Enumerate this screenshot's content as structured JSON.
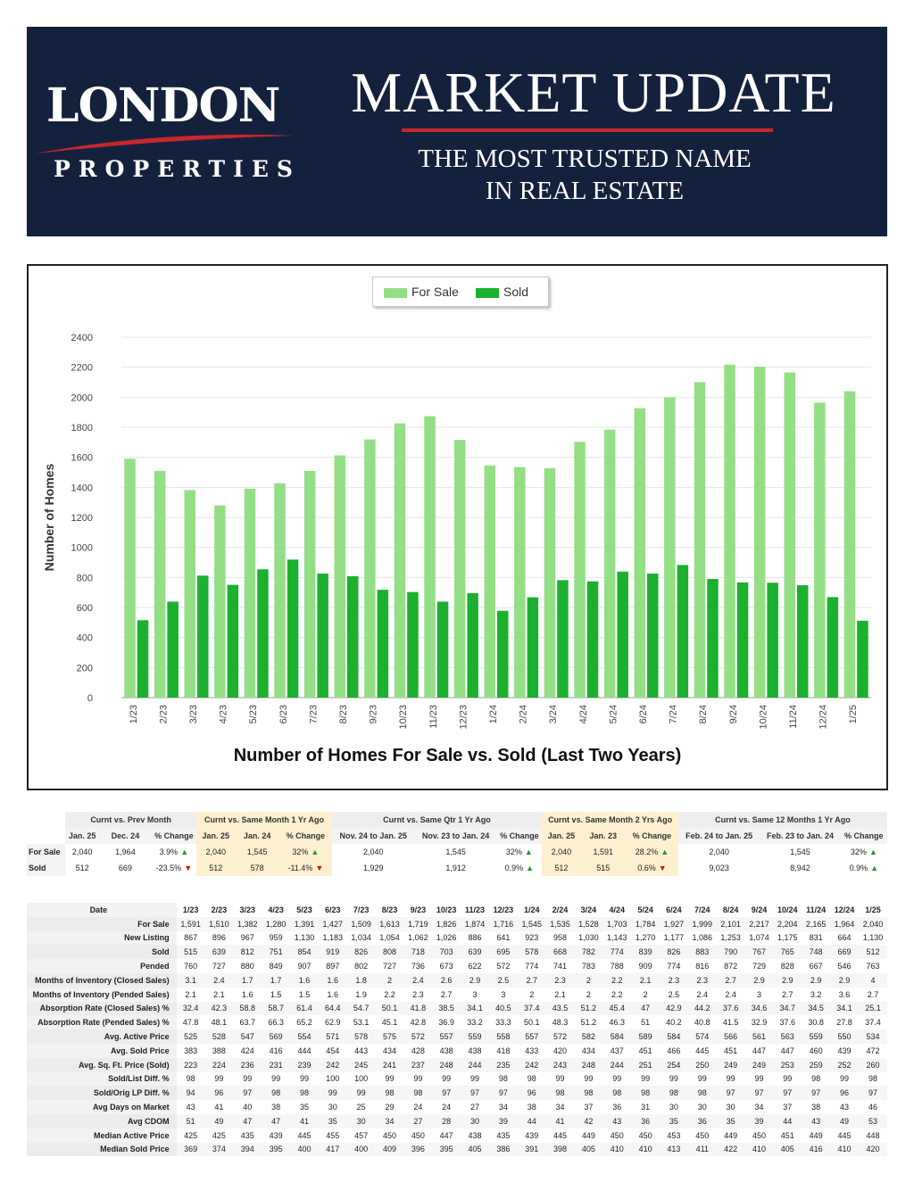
{
  "header": {
    "logo_main": "LONDON",
    "logo_sub": "PROPERTIES",
    "title": "MARKET UPDATE",
    "tagline_line1": "THE MOST TRUSTED NAME",
    "tagline_line2": "IN REAL ESTATE"
  },
  "colors": {
    "banner": "#14213d",
    "accent_red": "#c8262e",
    "for_sale": "#94df86",
    "sold": "#1bb02e"
  },
  "chart_data": {
    "type": "bar",
    "title": "Number of Homes For Sale vs. Sold (Last Two Years)",
    "ylabel": "Number of Homes",
    "xlabel": "",
    "ylim": [
      0,
      2400
    ],
    "yticks": [
      0,
      200,
      400,
      600,
      800,
      1000,
      1200,
      1400,
      1600,
      1800,
      2000,
      2200,
      2400
    ],
    "legend_position": "top-center",
    "grid": true,
    "categories": [
      "1/23",
      "2/23",
      "3/23",
      "4/23",
      "5/23",
      "6/23",
      "7/23",
      "8/23",
      "9/23",
      "10/23",
      "11/23",
      "12/23",
      "1/24",
      "2/24",
      "3/24",
      "4/24",
      "5/24",
      "6/24",
      "7/24",
      "8/24",
      "9/24",
      "10/24",
      "11/24",
      "12/24",
      "1/25"
    ],
    "series": [
      {
        "name": "For Sale",
        "color": "#94df86",
        "values": [
          1591,
          1510,
          1382,
          1280,
          1391,
          1427,
          1509,
          1613,
          1719,
          1826,
          1874,
          1716,
          1545,
          1535,
          1528,
          1703,
          1784,
          1927,
          1999,
          2101,
          2217,
          2204,
          2165,
          1964,
          2040
        ]
      },
      {
        "name": "Sold",
        "color": "#1bb02e",
        "values": [
          515,
          639,
          812,
          751,
          854,
          919,
          826,
          808,
          718,
          703,
          639,
          695,
          578,
          668,
          782,
          774,
          839,
          826,
          883,
          790,
          767,
          765,
          748,
          669,
          512
        ]
      }
    ]
  },
  "comparison": {
    "groups": [
      {
        "title": "Curnt vs. Prev Month",
        "highlight": false,
        "cols": [
          "Jan. 25",
          "Dec. 24",
          "% Change"
        ],
        "for_sale": [
          "2,040",
          "1,964",
          "3.9%"
        ],
        "for_sale_dir": "up",
        "sold": [
          "512",
          "669",
          "-23.5%"
        ],
        "sold_dir": "down"
      },
      {
        "title": "Curnt vs. Same Month 1 Yr Ago",
        "highlight": true,
        "cols": [
          "Jan. 25",
          "Jan. 24",
          "% Change"
        ],
        "for_sale": [
          "2,040",
          "1,545",
          "32%"
        ],
        "for_sale_dir": "up",
        "sold": [
          "512",
          "578",
          "-11.4%"
        ],
        "sold_dir": "down"
      },
      {
        "title": "Curnt vs. Same Qtr 1 Yr Ago",
        "highlight": false,
        "cols": [
          "Nov. 24 to Jan. 25",
          "Nov. 23 to Jan. 24",
          "% Change"
        ],
        "for_sale": [
          "2,040",
          "1,545",
          "32%"
        ],
        "for_sale_dir": "up",
        "sold": [
          "1,929",
          "1,912",
          "0.9%"
        ],
        "sold_dir": "up"
      },
      {
        "title": "Curnt vs. Same Month 2 Yrs Ago",
        "highlight": true,
        "cols": [
          "Jan. 25",
          "Jan. 23",
          "% Change"
        ],
        "for_sale": [
          "2,040",
          "1,591",
          "28.2%"
        ],
        "for_sale_dir": "up",
        "sold": [
          "512",
          "515",
          "0.6%"
        ],
        "sold_dir": "down"
      },
      {
        "title": "Curnt vs. Same 12 Months 1 Yr Ago",
        "highlight": false,
        "cols": [
          "Feb. 24 to Jan. 25",
          "Feb. 23 to Jan. 24",
          "% Change"
        ],
        "for_sale": [
          "2,040",
          "1,545",
          "32%"
        ],
        "for_sale_dir": "up",
        "sold": [
          "9,023",
          "8,942",
          "0.9%"
        ],
        "sold_dir": "up"
      }
    ],
    "row_labels": [
      "For Sale",
      "Sold"
    ]
  },
  "stats": {
    "header_label": "Date",
    "months": [
      "1/23",
      "2/23",
      "3/23",
      "4/23",
      "5/23",
      "6/23",
      "7/23",
      "8/23",
      "9/23",
      "10/23",
      "11/23",
      "12/23",
      "1/24",
      "2/24",
      "3/24",
      "4/24",
      "5/24",
      "6/24",
      "7/24",
      "8/24",
      "9/24",
      "10/24",
      "11/24",
      "12/24",
      "1/25"
    ],
    "rows": [
      {
        "label": "For Sale",
        "values": [
          "1,591",
          "1,510",
          "1,382",
          "1,280",
          "1,391",
          "1,427",
          "1,509",
          "1,613",
          "1,719",
          "1,826",
          "1,874",
          "1,716",
          "1,545",
          "1,535",
          "1,528",
          "1,703",
          "1,784",
          "1,927",
          "1,999",
          "2,101",
          "2,217",
          "2,204",
          "2,165",
          "1,964",
          "2,040"
        ]
      },
      {
        "label": "New Listing",
        "values": [
          "867",
          "896",
          "967",
          "959",
          "1,130",
          "1,183",
          "1,034",
          "1,054",
          "1,062",
          "1,026",
          "886",
          "641",
          "923",
          "958",
          "1,030",
          "1,143",
          "1,270",
          "1,177",
          "1,086",
          "1,253",
          "1,074",
          "1,175",
          "831",
          "664",
          "1,130"
        ]
      },
      {
        "label": "Sold",
        "values": [
          "515",
          "639",
          "812",
          "751",
          "854",
          "919",
          "826",
          "808",
          "718",
          "703",
          "639",
          "695",
          "578",
          "668",
          "782",
          "774",
          "839",
          "826",
          "883",
          "790",
          "767",
          "765",
          "748",
          "669",
          "512"
        ]
      },
      {
        "label": "Pended",
        "values": [
          "760",
          "727",
          "880",
          "849",
          "907",
          "897",
          "802",
          "727",
          "736",
          "673",
          "622",
          "572",
          "774",
          "741",
          "783",
          "788",
          "909",
          "774",
          "816",
          "872",
          "729",
          "828",
          "667",
          "546",
          "763"
        ]
      },
      {
        "label": "Months of Inventory (Closed Sales)",
        "values": [
          "3.1",
          "2.4",
          "1.7",
          "1.7",
          "1.6",
          "1.6",
          "1.8",
          "2",
          "2.4",
          "2.6",
          "2.9",
          "2.5",
          "2.7",
          "2.3",
          "2",
          "2.2",
          "2.1",
          "2.3",
          "2.3",
          "2.7",
          "2.9",
          "2.9",
          "2.9",
          "2.9",
          "4"
        ]
      },
      {
        "label": "Months of Inventory (Pended Sales)",
        "values": [
          "2.1",
          "2.1",
          "1.6",
          "1.5",
          "1.5",
          "1.6",
          "1.9",
          "2.2",
          "2.3",
          "2.7",
          "3",
          "3",
          "2",
          "2.1",
          "2",
          "2.2",
          "2",
          "2.5",
          "2.4",
          "2.4",
          "3",
          "2.7",
          "3.2",
          "3.6",
          "2.7"
        ]
      },
      {
        "label": "Absorption Rate (Closed Sales) %",
        "values": [
          "32.4",
          "42.3",
          "58.8",
          "58.7",
          "61.4",
          "64.4",
          "54.7",
          "50.1",
          "41.8",
          "38.5",
          "34.1",
          "40.5",
          "37.4",
          "43.5",
          "51.2",
          "45.4",
          "47",
          "42.9",
          "44.2",
          "37.6",
          "34.6",
          "34.7",
          "34.5",
          "34.1",
          "25.1"
        ]
      },
      {
        "label": "Absorption Rate (Pended Sales) %",
        "values": [
          "47.8",
          "48.1",
          "63.7",
          "66.3",
          "65.2",
          "62.9",
          "53.1",
          "45.1",
          "42.8",
          "36.9",
          "33.2",
          "33.3",
          "50.1",
          "48.3",
          "51.2",
          "46.3",
          "51",
          "40.2",
          "40.8",
          "41.5",
          "32.9",
          "37.6",
          "30.8",
          "27.8",
          "37.4"
        ]
      },
      {
        "label": "Avg. Active Price",
        "values": [
          "525",
          "528",
          "547",
          "569",
          "554",
          "571",
          "578",
          "575",
          "572",
          "557",
          "559",
          "558",
          "557",
          "572",
          "582",
          "584",
          "589",
          "584",
          "574",
          "566",
          "561",
          "563",
          "559",
          "550",
          "534"
        ]
      },
      {
        "label": "Avg. Sold Price",
        "values": [
          "383",
          "388",
          "424",
          "416",
          "444",
          "454",
          "443",
          "434",
          "428",
          "438",
          "438",
          "418",
          "433",
          "420",
          "434",
          "437",
          "451",
          "466",
          "445",
          "451",
          "447",
          "447",
          "460",
          "439",
          "472"
        ]
      },
      {
        "label": "Avg. Sq. Ft. Price (Sold)",
        "values": [
          "223",
          "224",
          "236",
          "231",
          "239",
          "242",
          "245",
          "241",
          "237",
          "248",
          "244",
          "235",
          "242",
          "243",
          "248",
          "244",
          "251",
          "254",
          "250",
          "249",
          "249",
          "253",
          "259",
          "252",
          "260"
        ]
      },
      {
        "label": "Sold/List Diff. %",
        "values": [
          "98",
          "99",
          "99",
          "99",
          "99",
          "100",
          "100",
          "99",
          "99",
          "99",
          "99",
          "98",
          "98",
          "99",
          "99",
          "99",
          "99",
          "99",
          "99",
          "99",
          "99",
          "99",
          "98",
          "99",
          "98"
        ]
      },
      {
        "label": "Sold/Orig LP Diff. %",
        "values": [
          "94",
          "96",
          "97",
          "98",
          "98",
          "99",
          "99",
          "98",
          "98",
          "97",
          "97",
          "97",
          "96",
          "98",
          "98",
          "98",
          "98",
          "98",
          "98",
          "97",
          "97",
          "97",
          "97",
          "96",
          "97"
        ]
      },
      {
        "label": "Avg Days on Market",
        "values": [
          "43",
          "41",
          "40",
          "38",
          "35",
          "30",
          "25",
          "29",
          "24",
          "24",
          "27",
          "34",
          "38",
          "34",
          "37",
          "36",
          "31",
          "30",
          "30",
          "30",
          "34",
          "37",
          "38",
          "43",
          "46"
        ]
      },
      {
        "label": "Avg CDOM",
        "values": [
          "51",
          "49",
          "47",
          "47",
          "41",
          "35",
          "30",
          "34",
          "27",
          "28",
          "30",
          "39",
          "44",
          "41",
          "42",
          "43",
          "36",
          "35",
          "36",
          "35",
          "39",
          "44",
          "43",
          "49",
          "53"
        ]
      },
      {
        "label": "Median Active Price",
        "values": [
          "425",
          "425",
          "435",
          "439",
          "445",
          "455",
          "457",
          "450",
          "450",
          "447",
          "438",
          "435",
          "439",
          "445",
          "449",
          "450",
          "450",
          "453",
          "450",
          "449",
          "450",
          "451",
          "449",
          "445",
          "448"
        ]
      },
      {
        "label": "Median Sold Price",
        "values": [
          "369",
          "374",
          "394",
          "395",
          "400",
          "417",
          "400",
          "409",
          "396",
          "395",
          "405",
          "386",
          "391",
          "398",
          "405",
          "410",
          "410",
          "413",
          "411",
          "422",
          "410",
          "405",
          "416",
          "410",
          "420"
        ]
      }
    ]
  }
}
